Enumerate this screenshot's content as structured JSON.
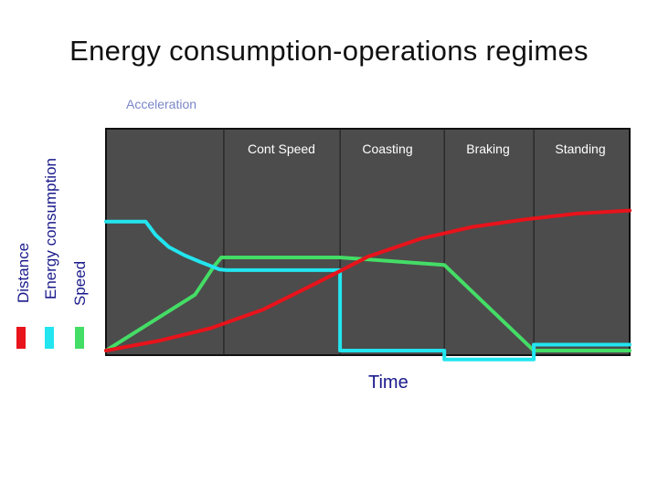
{
  "title": "Energy consumption-operations regimes",
  "legend": [
    {
      "name": "Distance",
      "color": "#e8131b"
    },
    {
      "name": "Energy consumption",
      "color": "#22e5ef"
    },
    {
      "name": "Speed",
      "color": "#44dd66"
    }
  ],
  "chart_data": {
    "type": "line",
    "title": "Energy consumption-operations regimes",
    "xlabel": "Time",
    "ylabel": "",
    "xlim": [
      0,
      100
    ],
    "ylim": [
      -3,
      25
    ],
    "grid": false,
    "background": "#4c4c4c",
    "legend_placement": "left",
    "regimes": [
      {
        "name": "Acceleration",
        "start": 0,
        "end": 22.5
      },
      {
        "name": "Cont Speed",
        "start": 22.5,
        "end": 44.7
      },
      {
        "name": "Coasting",
        "start": 44.7,
        "end": 64.6
      },
      {
        "name": "Braking",
        "start": 64.6,
        "end": 81.7
      },
      {
        "name": "Standing",
        "start": 81.7,
        "end": 100
      }
    ],
    "series": [
      {
        "name": "Distance",
        "color": "#e8131b",
        "x": [
          0,
          10,
          20,
          30,
          40,
          50,
          60,
          70,
          80,
          90,
          100
        ],
        "y": [
          0,
          1.3,
          3.0,
          5.5,
          9.0,
          12.6,
          15.0,
          16.6,
          17.6,
          18.4,
          18.8
        ]
      },
      {
        "name": "Energy consumption",
        "color": "#22e5ef",
        "x": [
          0,
          7.6,
          9.5,
          12,
          15,
          18,
          21.7,
          23,
          44.7,
          44.7,
          64.6,
          64.6,
          81.7,
          81.7,
          100
        ],
        "y": [
          17.3,
          17.3,
          15.5,
          13.9,
          12.8,
          11.9,
          10.9,
          10.8,
          10.8,
          0,
          0,
          -1.2,
          -1.2,
          0.8,
          0.8
        ]
      },
      {
        "name": "Speed",
        "color": "#44dd66",
        "x": [
          0,
          17,
          20.5,
          22,
          44.7,
          64.6,
          81.7,
          100
        ],
        "y": [
          0,
          7.5,
          11.2,
          12.5,
          12.5,
          11.5,
          0,
          0
        ]
      }
    ]
  }
}
